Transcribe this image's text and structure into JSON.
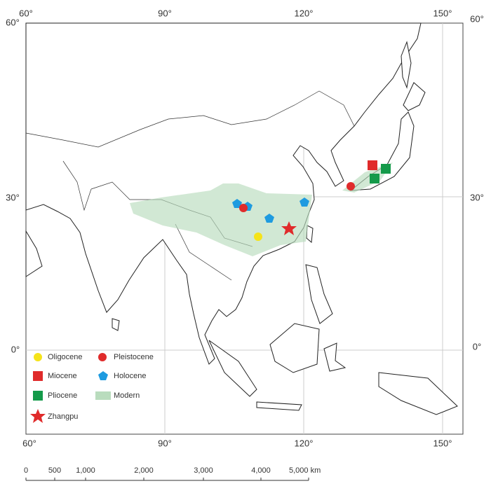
{
  "map": {
    "lon_labels_top": [
      "60°",
      "90°",
      "120°",
      "150°"
    ],
    "lon_labels_bottom": [
      "60°",
      "90°",
      "120°",
      "150°"
    ],
    "lat_labels_left": [
      "60°",
      "30°",
      "0°"
    ],
    "lat_labels_right": [
      "60°",
      "30°",
      "0°"
    ]
  },
  "legend": [
    {
      "label": "Oligocene"
    },
    {
      "label": "Pleistocene"
    },
    {
      "label": "Miocene"
    },
    {
      "label": "Holocene"
    },
    {
      "label": "Pliocene"
    },
    {
      "label": "Modern"
    },
    {
      "label": "Zhangpu"
    }
  ],
  "scale_bar": {
    "labels": [
      "0",
      "500",
      "1,000",
      "2,000",
      "3,000",
      "4,000",
      "5,000 km"
    ]
  }
}
